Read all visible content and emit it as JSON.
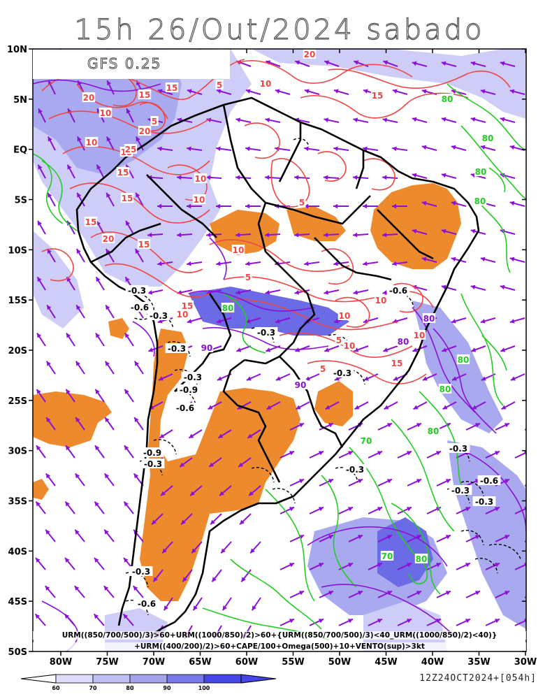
{
  "title": "15h 26/Out/2024 sabado",
  "model": "GFS 0.25",
  "caption": {
    "line1": "URM((850/700/500)/3)>60+URM((1000/850)/2)>60+{URM((850/700/500)/3)<40_URM((1000/850)/2)<40)}",
    "line2": "+URM((400/200)/2)>60+CAPE/100+Omega(500)+10+VENTO(sup)>3kt"
  },
  "run_info": "12Z24OCT2024+[054h]",
  "y_axis_labels": [
    "10N",
    "5N",
    "EQ",
    "5S",
    "10S",
    "15S",
    "20S",
    "25S",
    "30S",
    "35S",
    "40S",
    "45S",
    "50S"
  ],
  "x_axis_labels": [
    "80W",
    "75W",
    "70W",
    "65W",
    "60W",
    "55W",
    "50W",
    "45W",
    "40W",
    "35W",
    "30W"
  ],
  "legend": {
    "values": [
      "60",
      "70",
      "80",
      "90",
      "100"
    ],
    "colors": [
      "#dcdcfa",
      "#c0c0f4",
      "#a4a4ee",
      "#7878ea",
      "#4646e6"
    ]
  },
  "colors": {
    "humidity_light": "#cdcdf7",
    "humidity_mid": "#a9a9ef",
    "humidity_dark": "#6b6be6",
    "omega_fill": "#ee8a2e",
    "cape_contour": "#f04545",
    "urm_upper_contour": "#8b10d8",
    "urm_low_contour": "#22cc22",
    "wind_arrow": "#8b10d8",
    "omega_contour": "#000000"
  },
  "contour_labels": {
    "cape": [
      "20",
      "5",
      "20",
      "15",
      "10",
      "5",
      "10",
      "15",
      "20",
      "25",
      "15",
      "10",
      "15",
      "10",
      "5",
      "15",
      "20",
      "15",
      "10",
      "5",
      "10",
      "15",
      "5",
      "10",
      "5",
      "10",
      "15",
      "10",
      "5",
      "10",
      "15",
      "5",
      "10",
      "15"
    ],
    "urm_low": [
      "80",
      "80",
      "80",
      "80",
      "70",
      "80",
      "80",
      "70",
      "80",
      "80",
      "80"
    ],
    "omega": [
      "-0.3",
      "-0.6",
      "-0.3",
      "-0.3",
      "-0.3",
      "-0.9",
      "-0.6",
      "-0.9",
      "-0.3",
      "-0.3",
      "-0.6",
      "-0.3",
      "-0.3",
      "-0.6",
      "-0.3",
      "-0.3",
      "-0.6",
      "-0.3",
      "-0.3"
    ],
    "urm_upper": [
      "90",
      "80",
      "80",
      "90"
    ]
  }
}
